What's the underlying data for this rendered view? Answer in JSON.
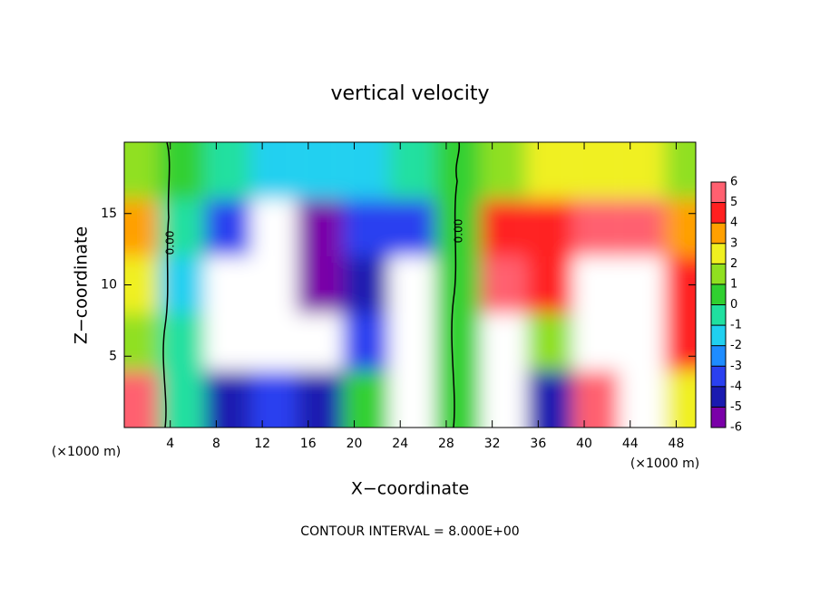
{
  "chart_data": {
    "type": "contour",
    "title": "vertical velocity",
    "x_label": "X−coordinate",
    "y_label": "Z−coordinate",
    "unit_label": "(×1000 m)",
    "contour_label": "0.00",
    "footer": "CONTOUR INTERVAL = 8.000E+00",
    "x": [
      1,
      5,
      9,
      13,
      17,
      21,
      25,
      29,
      33,
      37,
      41,
      45,
      49
    ],
    "z": [
      2,
      6,
      10,
      14,
      18
    ],
    "values": [
      [
        5,
        -1,
        -5,
        -4,
        -5,
        0,
        -7,
        0,
        7,
        -5,
        5,
        7,
        2
      ],
      [
        1,
        -1,
        -7,
        -7,
        -7,
        -4,
        -7,
        0,
        7,
        1,
        7,
        7,
        4
      ],
      [
        2,
        -2,
        -7,
        -7,
        -6,
        -5,
        -7,
        0,
        5,
        4,
        7,
        7,
        4
      ],
      [
        3,
        -1,
        -4,
        -7,
        -6,
        -4,
        -4,
        0,
        4,
        4,
        5,
        5,
        3
      ],
      [
        1,
        0,
        -1,
        -2,
        -2,
        -2,
        -1,
        0,
        1,
        2,
        2,
        2,
        1
      ]
    ],
    "xlim": [
      0,
      49.7
    ],
    "ylim": [
      0,
      20
    ],
    "xticks": [
      4,
      8,
      12,
      16,
      20,
      24,
      28,
      32,
      36,
      40,
      44,
      48
    ],
    "yticks": [
      5,
      10,
      15
    ],
    "clim": [
      -6,
      6
    ],
    "cticks": [
      6,
      5,
      4,
      3,
      2,
      1,
      0,
      -1,
      -2,
      -3,
      -4,
      -5,
      -6
    ],
    "colors": [
      "#7a00a8",
      "#1a1ab0",
      "#2a40f0",
      "#1e8cff",
      "#20d0f0",
      "#20e0a0",
      "#30d030",
      "#90e020",
      "#f0f020",
      "#ffa000",
      "#ff2020",
      "#ff6070"
    ]
  }
}
